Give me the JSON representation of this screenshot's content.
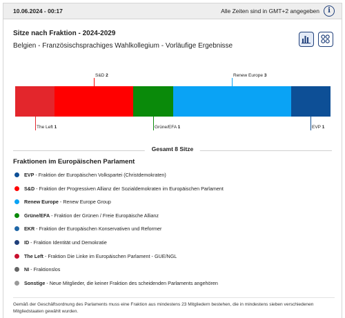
{
  "header": {
    "timestamp": "10.06.2024 - 00:17",
    "timezone_note": "Alle Zeiten sind in GMT+2 angegeben",
    "info_icon_glyph": "i"
  },
  "title": "Sitze nach Fraktion - 2024-2029",
  "subtitle": "Belgien - Französischsprachiges Wahlkollegium - Vorläufige Ergebnisse",
  "view_toggle": {
    "active": "bar-chart-view",
    "options": [
      "bar-chart-view",
      "grid-view"
    ]
  },
  "chart_data": {
    "type": "bar",
    "orientation": "horizontal-stacked",
    "total": 8,
    "segments": [
      {
        "name": "The Left",
        "value": 1,
        "color": "#e3262c"
      },
      {
        "name": "S&D",
        "value": 2,
        "color": "#ff0000"
      },
      {
        "name": "Grüne/EFA",
        "value": 1,
        "color": "#0a8a0a"
      },
      {
        "name": "Renew Europe",
        "value": 3,
        "color": "#0aa3f5"
      },
      {
        "name": "EVP",
        "value": 1,
        "color": "#0d4f96"
      }
    ]
  },
  "total_label": "Gesamt 8 Sitze",
  "legend": {
    "title": "Fraktionen im Europäischen Parlament",
    "items": [
      {
        "abbr": "EVP",
        "desc": "Fraktion der Europäischen Volkspartei (Christdemokraten)",
        "color": "#0d4f96"
      },
      {
        "abbr": "S&D",
        "desc": "Fraktion der Progressiven Allianz der Sozialdemokraten im Europäischen Parlament",
        "color": "#ff0000"
      },
      {
        "abbr": "Renew Europe",
        "desc": "Renew Europe Group",
        "color": "#0aa3f5"
      },
      {
        "abbr": "Grüne/EFA",
        "desc": "Fraktion der Grünen / Freie Europäische Allianz",
        "color": "#0a8a0a"
      },
      {
        "abbr": "EKR",
        "desc": "Fraktion der Europäischen Konservativen und Reformer",
        "color": "#1f66a6"
      },
      {
        "abbr": "ID",
        "desc": "Fraktion Identität und Demokratie",
        "color": "#1f3f7a"
      },
      {
        "abbr": "The Left",
        "desc": "Fraktion Die Linke im Europäischen Parlament - GUE/NGL",
        "color": "#c8102e"
      },
      {
        "abbr": "NI",
        "desc": "Fraktionslos",
        "color": "#666666"
      },
      {
        "abbr": "Sonstige",
        "desc": "Neue Mitglieder, die keiner Fraktion des scheidenden Parlaments angehören",
        "color": "#9a9a9a"
      }
    ]
  },
  "footnote": "Gemäß der Geschäftsordnung des Parlaments muss eine Fraktion aus mindestens 23 Mitgliedern bestehen, die in mindestens sieben verschiedenen Mitgliedstaaten gewählt wurden."
}
